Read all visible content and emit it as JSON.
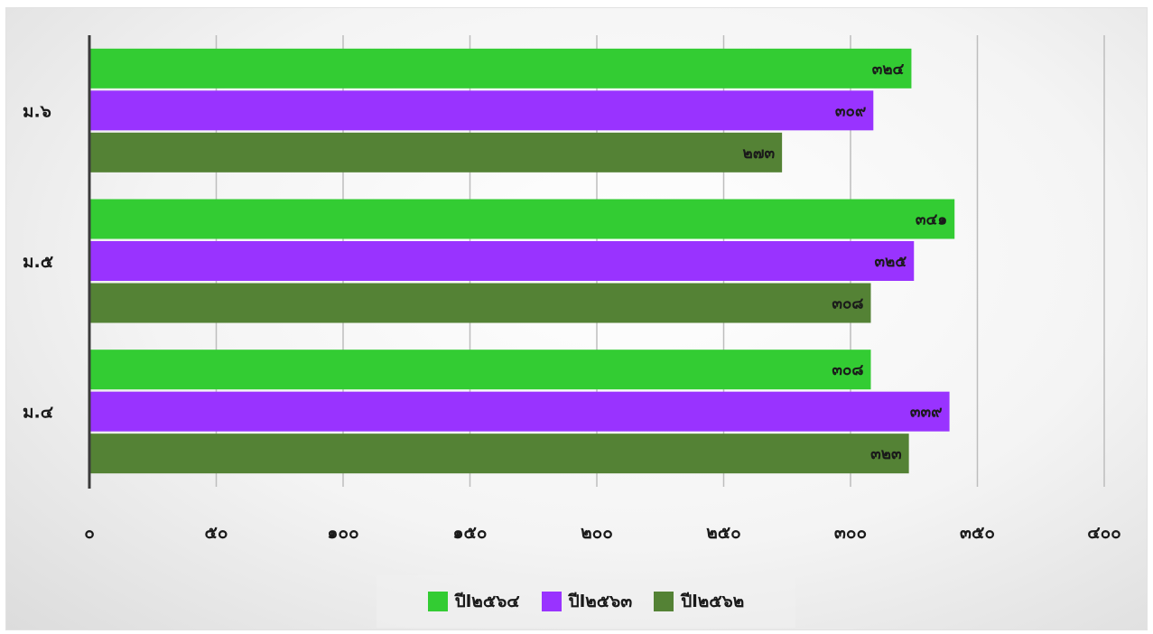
{
  "chart_data": {
    "type": "bar",
    "orientation": "horizontal",
    "categories": [
      "ม.๖",
      "ม.๕",
      "ม.๔"
    ],
    "series": [
      {
        "name": "ปีl๒๕๖๔",
        "color": "#33cc33",
        "values": [
          324,
          341,
          308
        ],
        "labels": [
          "๓๒๔",
          "๓๔๑",
          "๓๐๘"
        ]
      },
      {
        "name": "ปีl๒๕๖๓",
        "color": "#9933ff",
        "values": [
          309,
          325,
          339
        ],
        "labels": [
          "๓๐๙",
          "๓๒๕",
          "๓๓๙"
        ]
      },
      {
        "name": "ปีl๒๕๖๒",
        "color": "#548235",
        "values": [
          273,
          308,
          323
        ],
        "labels": [
          "๒๗๓",
          "๓๐๘",
          "๓๒๓"
        ]
      }
    ],
    "x_ticks": [
      0,
      50,
      100,
      150,
      200,
      250,
      300,
      350,
      400
    ],
    "x_tick_labels": [
      "๐",
      "๕๐",
      "๑๐๐",
      "๑๕๐",
      "๒๐๐",
      "๒๕๐",
      "๓๐๐",
      "๓๕๐",
      "๔๐๐"
    ],
    "xlim": [
      0,
      400
    ],
    "grid": true,
    "legend_position": "bottom"
  }
}
